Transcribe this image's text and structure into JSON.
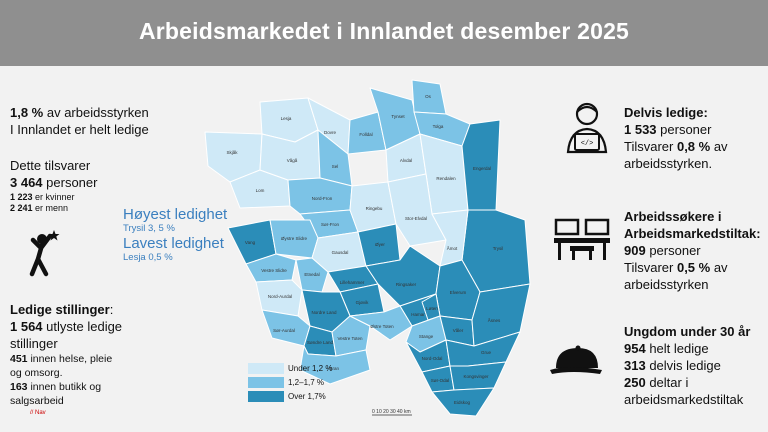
{
  "header": {
    "title": "Arbeidsmarkedet i Innlandet desember 2025"
  },
  "left": {
    "rate_value": "1,8 %",
    "rate_line1_rest": " av arbeidsstyrken",
    "rate_line2": "I Innlandet er helt ledige",
    "equals_label": "Dette tilsvarer",
    "persons_value": "3 464",
    "persons_unit": " personer",
    "women_value": "1 223",
    "women_label": " er kvinner",
    "men_value": "2 241",
    "men_label": " er menn",
    "vacancies_title": "Ledige stillinger",
    "vacancies_colon": ":",
    "vacancies_value": "1 564",
    "vacancies_rest": " utlyste ledige stillinger",
    "health_value": "451",
    "health_label": "  innen helse, pleie og omsorg.",
    "retail_value": "163",
    "retail_label": " innen butikk og salgsarbeid",
    "source": "// Nav"
  },
  "highlights": {
    "highest_title": "Høyest ledighet",
    "highest_value": "Trysil 3, 5 %",
    "lowest_title": "Lavest ledighet",
    "lowest_value": "Lesja  0,5 %"
  },
  "right": {
    "partial_title": "Delvis ledige:",
    "partial_value": "1 533",
    "partial_unit": " personer",
    "partial_share_label": "Tilsvarer ",
    "partial_share_value": "0,8 %",
    "partial_share_rest": " av arbeidsstyrken.",
    "measures_title": "Arbeidssøkere i Arbeidsmarkedstiltak:",
    "measures_value": "909",
    "measures_unit": " personer",
    "measures_share_label": "Tilsvarer ",
    "measures_share_value": "0,5 %",
    "measures_share_rest": " av arbeidsstyrken",
    "youth_title": "Ungdom under 30 år",
    "youth_full_value": "954",
    "youth_full_label": " helt ledige",
    "youth_partial_value": "313",
    "youth_partial_label": " delvis ledige",
    "youth_measures_value": "250",
    "youth_measures_label": " deltar i arbeidsmarkedstiltak"
  },
  "legend": {
    "items": [
      {
        "label": "Under 1,2 %",
        "color": "#cfe9f7"
      },
      {
        "label": "1,2–1,7 %",
        "color": "#7cc3e6"
      },
      {
        "label": "Over 1,7%",
        "color": "#2b8db8"
      }
    ]
  },
  "map": {
    "scale_label": "0 10 20 30 40 km",
    "municipalities": [
      {
        "name": "Lesja",
        "level": "low"
      },
      {
        "name": "Skjåk",
        "level": "low"
      },
      {
        "name": "Dovre",
        "level": "low"
      },
      {
        "name": "Lom",
        "level": "low"
      },
      {
        "name": "Vågå",
        "level": "low"
      },
      {
        "name": "Sel",
        "level": "mid"
      },
      {
        "name": "Folldal",
        "level": "mid"
      },
      {
        "name": "Tynset",
        "level": "mid"
      },
      {
        "name": "Os",
        "level": "mid"
      },
      {
        "name": "Tolga",
        "level": "mid"
      },
      {
        "name": "Alvdal",
        "level": "low"
      },
      {
        "name": "Rendalen",
        "level": "low"
      },
      {
        "name": "Engerdal",
        "level": "high"
      },
      {
        "name": "Nord-Fron",
        "level": "mid"
      },
      {
        "name": "Sør-Fron",
        "level": "mid"
      },
      {
        "name": "Ringebu",
        "level": "low"
      },
      {
        "name": "Stor-Elvdal",
        "level": "low"
      },
      {
        "name": "Trysil",
        "level": "high"
      },
      {
        "name": "Vang",
        "level": "high"
      },
      {
        "name": "Øystre Slidre",
        "level": "mid"
      },
      {
        "name": "Gausdal",
        "level": "low"
      },
      {
        "name": "Øyer",
        "level": "high"
      },
      {
        "name": "Åmot",
        "level": "low"
      },
      {
        "name": "Vestre Slidre",
        "level": "mid"
      },
      {
        "name": "Etnedal",
        "level": "mid"
      },
      {
        "name": "Lillehammer",
        "level": "high"
      },
      {
        "name": "Nord-Aurdal",
        "level": "low"
      },
      {
        "name": "Ringsaker",
        "level": "high"
      },
      {
        "name": "Gjøvik",
        "level": "high"
      },
      {
        "name": "Elverum",
        "level": "high"
      },
      {
        "name": "Nordre Land",
        "level": "high"
      },
      {
        "name": "Hamar",
        "level": "high"
      },
      {
        "name": "Løten",
        "level": "high"
      },
      {
        "name": "Sør-Aurdal",
        "level": "mid"
      },
      {
        "name": "Søndre Land",
        "level": "high"
      },
      {
        "name": "Vestre Toten",
        "level": "mid"
      },
      {
        "name": "Østre Toten",
        "level": "mid"
      },
      {
        "name": "Stange",
        "level": "mid"
      },
      {
        "name": "Våler",
        "level": "high"
      },
      {
        "name": "Åsnes",
        "level": "high"
      },
      {
        "name": "Gran",
        "level": "mid"
      },
      {
        "name": "Nord-Odal",
        "level": "high"
      },
      {
        "name": "Grue",
        "level": "high"
      },
      {
        "name": "Sør-Odal",
        "level": "high"
      },
      {
        "name": "Kongsvinger",
        "level": "high"
      },
      {
        "name": "Eidskog",
        "level": "high"
      }
    ]
  }
}
